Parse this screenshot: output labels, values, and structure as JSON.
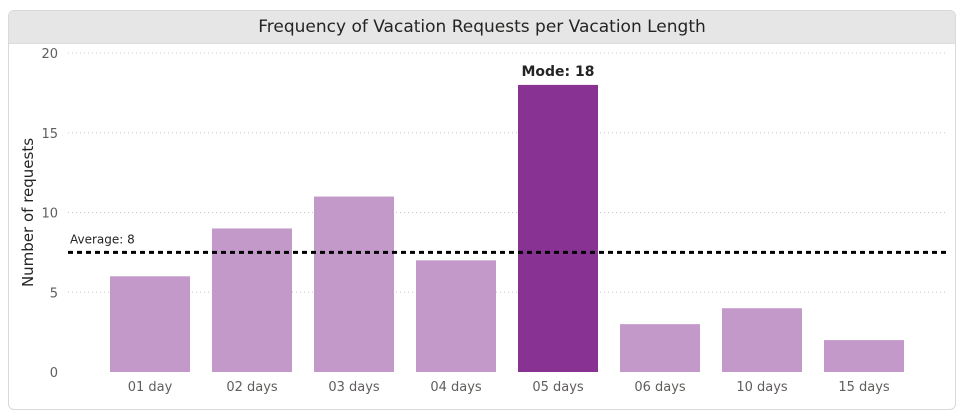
{
  "chart_data": {
    "type": "bar",
    "title": "Frequency of Vacation Requests per Vacation Length",
    "xlabel": "",
    "ylabel": "Number of requests",
    "categories": [
      "01 day",
      "02 days",
      "03 days",
      "04 days",
      "05 days",
      "06 days",
      "10 days",
      "15 days"
    ],
    "values": [
      6,
      9,
      11,
      7,
      18,
      3,
      4,
      2
    ],
    "ylim": [
      0,
      20
    ],
    "yticks": [
      0,
      5,
      10,
      15,
      20
    ],
    "grid": true,
    "average": {
      "value": 7.5,
      "label": "Average: 8"
    },
    "mode": {
      "index": 4,
      "label": "Mode: 18"
    },
    "colors": {
      "bar": "#c399c9",
      "highlight": "#883394",
      "average_line": "#000000",
      "grid": "#c8c8c8"
    }
  }
}
